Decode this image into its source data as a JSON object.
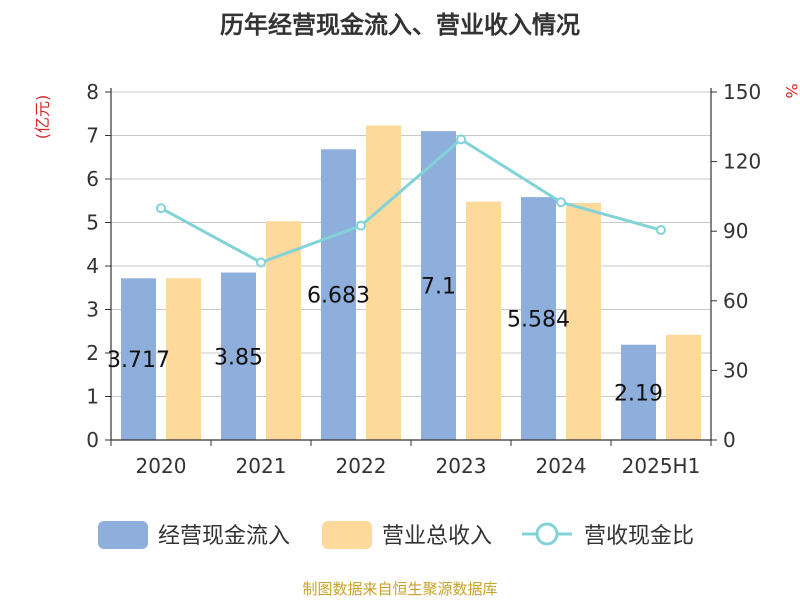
{
  "chart_data": {
    "type": "bar",
    "title": "历年经营现金流入、营业收入情况",
    "ylabel_left": "(亿元)",
    "ylabel_right": "%",
    "categories": [
      "2020",
      "2021",
      "2022",
      "2023",
      "2024",
      "2025H1"
    ],
    "ylim_left": [
      0,
      8
    ],
    "yticks_left": [
      0,
      1,
      2,
      3,
      4,
      5,
      6,
      7,
      8
    ],
    "ylim_right": [
      0,
      150
    ],
    "yticks_right": [
      0,
      30,
      60,
      90,
      120,
      150
    ],
    "grid": true,
    "legend_position": "bottom",
    "series": [
      {
        "name": "经营现金流入",
        "type": "bar",
        "axis": "left",
        "color": "#8eaedb",
        "values": [
          3.717,
          3.85,
          6.683,
          7.1,
          5.584,
          2.19
        ],
        "labels": [
          "3.717",
          "3.85",
          "6.683",
          "7.1",
          "5.584",
          "2.19"
        ]
      },
      {
        "name": "营业总收入",
        "type": "bar",
        "axis": "left",
        "color": "#fdd99b",
        "values": [
          3.72,
          5.03,
          7.23,
          5.48,
          5.45,
          2.42
        ]
      },
      {
        "name": "营收现金比",
        "type": "line",
        "axis": "right",
        "color": "#82d3d8",
        "values": [
          99.9,
          76.5,
          92.4,
          129.6,
          102.5,
          90.5
        ]
      }
    ],
    "source": "制图数据来自恒生聚源数据库"
  }
}
